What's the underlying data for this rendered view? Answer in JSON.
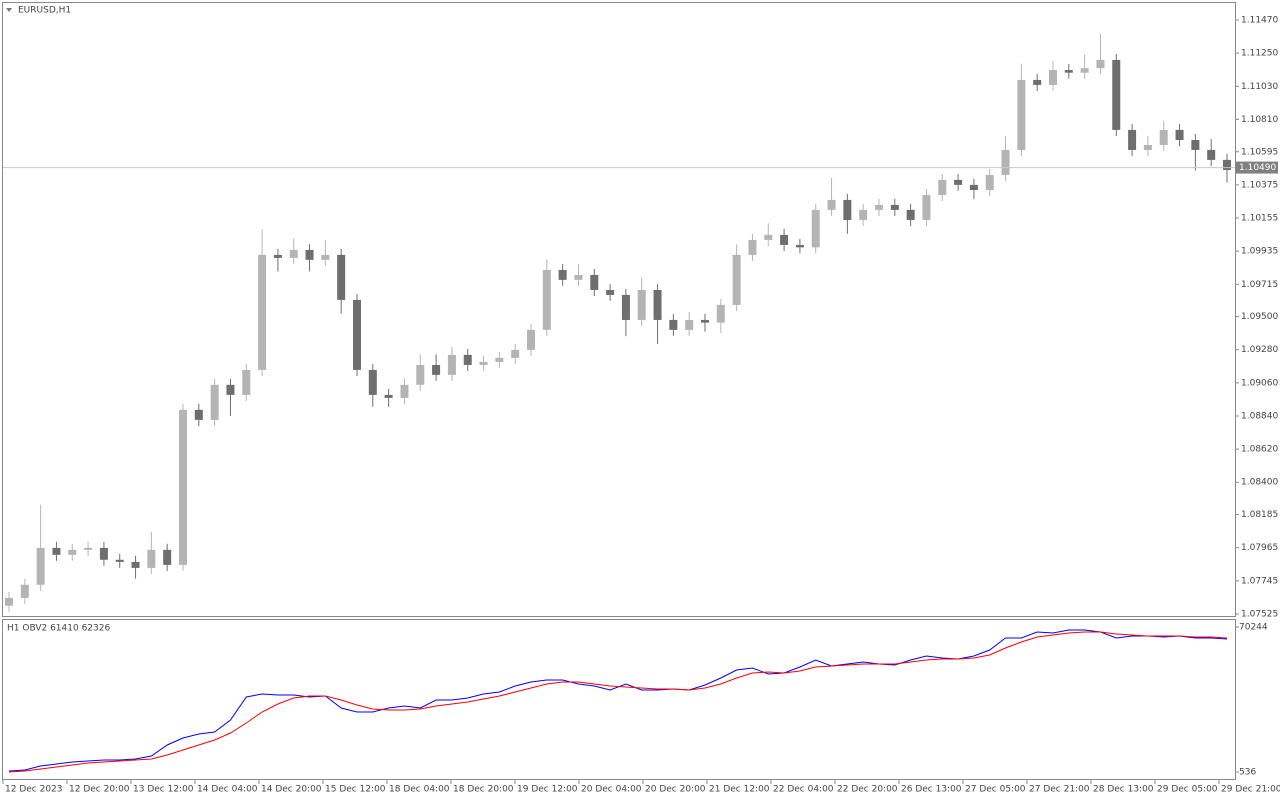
{
  "chart_data": [
    {
      "type": "candlestick",
      "title": "EURUSD,H1",
      "up_color": "#b4b4b4",
      "down_color": "#6e6e6e",
      "open": [
        1.0758,
        1.07632,
        1.07719,
        1.07964,
        1.07918,
        1.07951,
        1.07964,
        1.07885,
        1.07871,
        1.07831,
        1.07951,
        1.07851,
        1.08881,
        1.08814,
        1.09047,
        1.0898,
        1.09146,
        1.0991,
        1.0989,
        1.09943,
        1.09877,
        1.0991,
        1.09611,
        1.09146,
        1.0898,
        1.0896,
        1.09047,
        1.09179,
        1.09113,
        1.09246,
        1.09179,
        1.09199,
        1.09226,
        1.09279,
        1.09412,
        1.0981,
        1.09744,
        1.09777,
        1.09677,
        1.09644,
        1.09478,
        1.09677,
        1.09478,
        1.09412,
        1.09478,
        1.0946,
        1.09578,
        1.0991,
        1.10009,
        1.10043,
        1.09976,
        1.0996,
        1.10209,
        1.10275,
        1.10142,
        1.10209,
        1.10242,
        1.10209,
        1.10142,
        1.10308,
        1.10408,
        1.10375,
        1.10341,
        1.10441,
        1.10607,
        1.11072,
        1.11039,
        1.11138,
        1.1112,
        1.1115,
        1.11205,
        1.1074,
        1.10607,
        1.1064,
        1.1074,
        1.10673,
        1.10607,
        1.10541
      ],
      "high": [
        1.07672,
        1.07759,
        1.0825,
        1.08004,
        1.07991,
        1.08004,
        1.08004,
        1.07925,
        1.07911,
        1.0807,
        1.07991,
        1.08921,
        1.08921,
        1.09087,
        1.09087,
        1.09186,
        1.1008,
        1.0995,
        1.1002,
        1.09983,
        1.1001,
        1.0995,
        1.09651,
        1.09186,
        1.0902,
        1.09087,
        1.0925,
        1.0925,
        1.093,
        1.09286,
        1.09239,
        1.09266,
        1.09319,
        1.09452,
        1.0988,
        1.0985,
        1.0985,
        1.09817,
        1.09717,
        1.09684,
        1.0976,
        1.09717,
        1.09518,
        1.0953,
        1.09518,
        1.09618,
        1.0998,
        1.10049,
        1.1012,
        1.10083,
        1.10016,
        1.10249,
        1.1042,
        1.10315,
        1.10249,
        1.10282,
        1.10282,
        1.10249,
        1.10348,
        1.10448,
        1.10448,
        1.10415,
        1.10481,
        1.107,
        1.1118,
        1.11112,
        1.112,
        1.11178,
        1.1124,
        1.1138,
        1.11245,
        1.1078,
        1.107,
        1.108,
        1.1078,
        1.10713,
        1.1068,
        1.10581
      ],
      "low": [
        1.0754,
        1.07592,
        1.07679,
        1.07878,
        1.07878,
        1.07911,
        1.07845,
        1.07831,
        1.0776,
        1.07791,
        1.07811,
        1.07811,
        1.08774,
        1.08774,
        1.0884,
        1.0894,
        1.09106,
        1.098,
        1.0985,
        1.098,
        1.09837,
        1.0952,
        1.09106,
        1.089,
        1.089,
        1.0892,
        1.09007,
        1.09073,
        1.09073,
        1.09139,
        1.09139,
        1.09159,
        1.09186,
        1.09239,
        1.09372,
        1.09704,
        1.09704,
        1.09637,
        1.09604,
        1.0937,
        1.09438,
        1.0932,
        1.09372,
        1.09372,
        1.094,
        1.0939,
        1.09538,
        1.0987,
        1.09969,
        1.09936,
        1.0992,
        1.0992,
        1.10169,
        1.1005,
        1.10102,
        1.10169,
        1.10169,
        1.10102,
        1.10102,
        1.10268,
        1.10335,
        1.1028,
        1.10301,
        1.10401,
        1.10567,
        1.10999,
        1.10999,
        1.1108,
        1.1108,
        1.1111,
        1.107,
        1.10567,
        1.10567,
        1.106,
        1.10633,
        1.1047,
        1.10501,
        1.1039
      ],
      "close": [
        1.07632,
        1.07719,
        1.07964,
        1.07918,
        1.07951,
        1.07964,
        1.07885,
        1.07871,
        1.07831,
        1.07951,
        1.07851,
        1.08881,
        1.08814,
        1.09047,
        1.0898,
        1.09146,
        1.0991,
        1.0989,
        1.09943,
        1.09877,
        1.0991,
        1.09611,
        1.09146,
        1.0898,
        1.0896,
        1.09047,
        1.09179,
        1.09113,
        1.09246,
        1.09179,
        1.09199,
        1.09226,
        1.09279,
        1.09412,
        1.0981,
        1.09744,
        1.09777,
        1.09677,
        1.09644,
        1.09478,
        1.09677,
        1.09478,
        1.09412,
        1.09478,
        1.0946,
        1.09578,
        1.0991,
        1.10009,
        1.10043,
        1.09976,
        1.0996,
        1.10209,
        1.10275,
        1.10142,
        1.10209,
        1.10242,
        1.10209,
        1.10142,
        1.10308,
        1.10408,
        1.10375,
        1.10341,
        1.10441,
        1.10607,
        1.11072,
        1.11039,
        1.11138,
        1.1112,
        1.1115,
        1.11205,
        1.1074,
        1.10607,
        1.1064,
        1.1074,
        1.10673,
        1.10607,
        1.10541,
        1.10474
      ],
      "current_price": {
        "value": 1.1049,
        "label": "1.10490"
      },
      "ylim": [
        1.07505,
        1.11583
      ],
      "yticks": [
        {
          "value": 1.1147,
          "label": "1.11470"
        },
        {
          "value": 1.1125,
          "label": "1.11250"
        },
        {
          "value": 1.1103,
          "label": "1.11030"
        },
        {
          "value": 1.1081,
          "label": "1.10810"
        },
        1.10595,
        1.10375,
        1.10155,
        1.09935,
        1.09715,
        {
          "value": 1.095,
          "label": "1.09500"
        },
        {
          "value": 1.0928,
          "label": "1.09280"
        },
        {
          "value": 1.0906,
          "label": "1.09060"
        },
        {
          "value": 1.0884,
          "label": "1.08840"
        },
        {
          "value": 1.0862,
          "label": "1.08620"
        },
        {
          "value": 1.084,
          "label": "1.08400"
        },
        1.08185,
        1.07965,
        1.07745,
        1.07525
      ],
      "x_labels": [
        "12 Dec 2023",
        "12 Dec 20:00",
        "13 Dec 12:00",
        "14 Dec 04:00",
        "14 Dec 20:00",
        "15 Dec 12:00",
        "18 Dec 04:00",
        "18 Dec 20:00",
        "19 Dec 12:00",
        "20 Dec 04:00",
        "20 Dec 20:00",
        "21 Dec 12:00",
        "22 Dec 04:00",
        "22 Dec 20:00",
        "26 Dec 13:00",
        "27 Dec 05:00",
        "27 Dec 21:00",
        "28 Dec 13:00",
        "29 Dec 05:00",
        "29 Dec 21:00"
      ]
    },
    {
      "type": "line",
      "title": "H1 OBV2 61410 62326",
      "series": [
        {
          "color": "#0000ff",
          "values": [
            1017,
            1498,
            3421,
            4382,
            5344,
            5824,
            6305,
            6305,
            6786,
            8228,
            13516,
            16882,
            18805,
            19766,
            25535,
            36592,
            38035,
            37554,
            37554,
            36592,
            37073,
            31304,
            29381,
            29381,
            31304,
            32266,
            31304,
            35150,
            35150,
            36112,
            38035,
            38996,
            41881,
            43804,
            44765,
            44765,
            42842,
            41881,
            39958,
            42842,
            39958,
            39958,
            40438,
            39958,
            42359,
            45731,
            49573,
            50534,
            47650,
            48130,
            51015,
            54380,
            51496,
            52457,
            53419,
            52457,
            51976,
            54380,
            56303,
            55342,
            54861,
            56303,
            59188,
            64956,
            64956,
            67841,
            67360,
            68802,
            68802,
            67841,
            64956,
            65918,
            65918,
            65437,
            65918,
            64956,
            64956,
            64476
          ]
        },
        {
          "color": "#ff0000",
          "values": [
            536,
            1017,
            1978,
            2940,
            3901,
            4863,
            5344,
            5824,
            6305,
            6786,
            8709,
            11113,
            13516,
            15920,
            19285,
            24093,
            29381,
            33227,
            36112,
            37073,
            37073,
            35150,
            32746,
            30823,
            30343,
            30343,
            30823,
            32266,
            33227,
            34189,
            35631,
            37073,
            38996,
            40919,
            42842,
            43804,
            43804,
            42842,
            41881,
            41400,
            40919,
            40438,
            40438,
            39958,
            40919,
            42842,
            45731,
            48130,
            48611,
            48130,
            49092,
            51015,
            51496,
            51976,
            52457,
            52457,
            52457,
            53419,
            54380,
            54861,
            54861,
            55342,
            56784,
            60149,
            63034,
            65437,
            66399,
            67360,
            67841,
            67841,
            66879,
            66399,
            65918,
            65918,
            65918,
            65437,
            65437,
            64956
          ]
        }
      ],
      "ylim": [
        -3310,
        73609
      ],
      "yticks": [
        70244,
        536
      ]
    }
  ]
}
